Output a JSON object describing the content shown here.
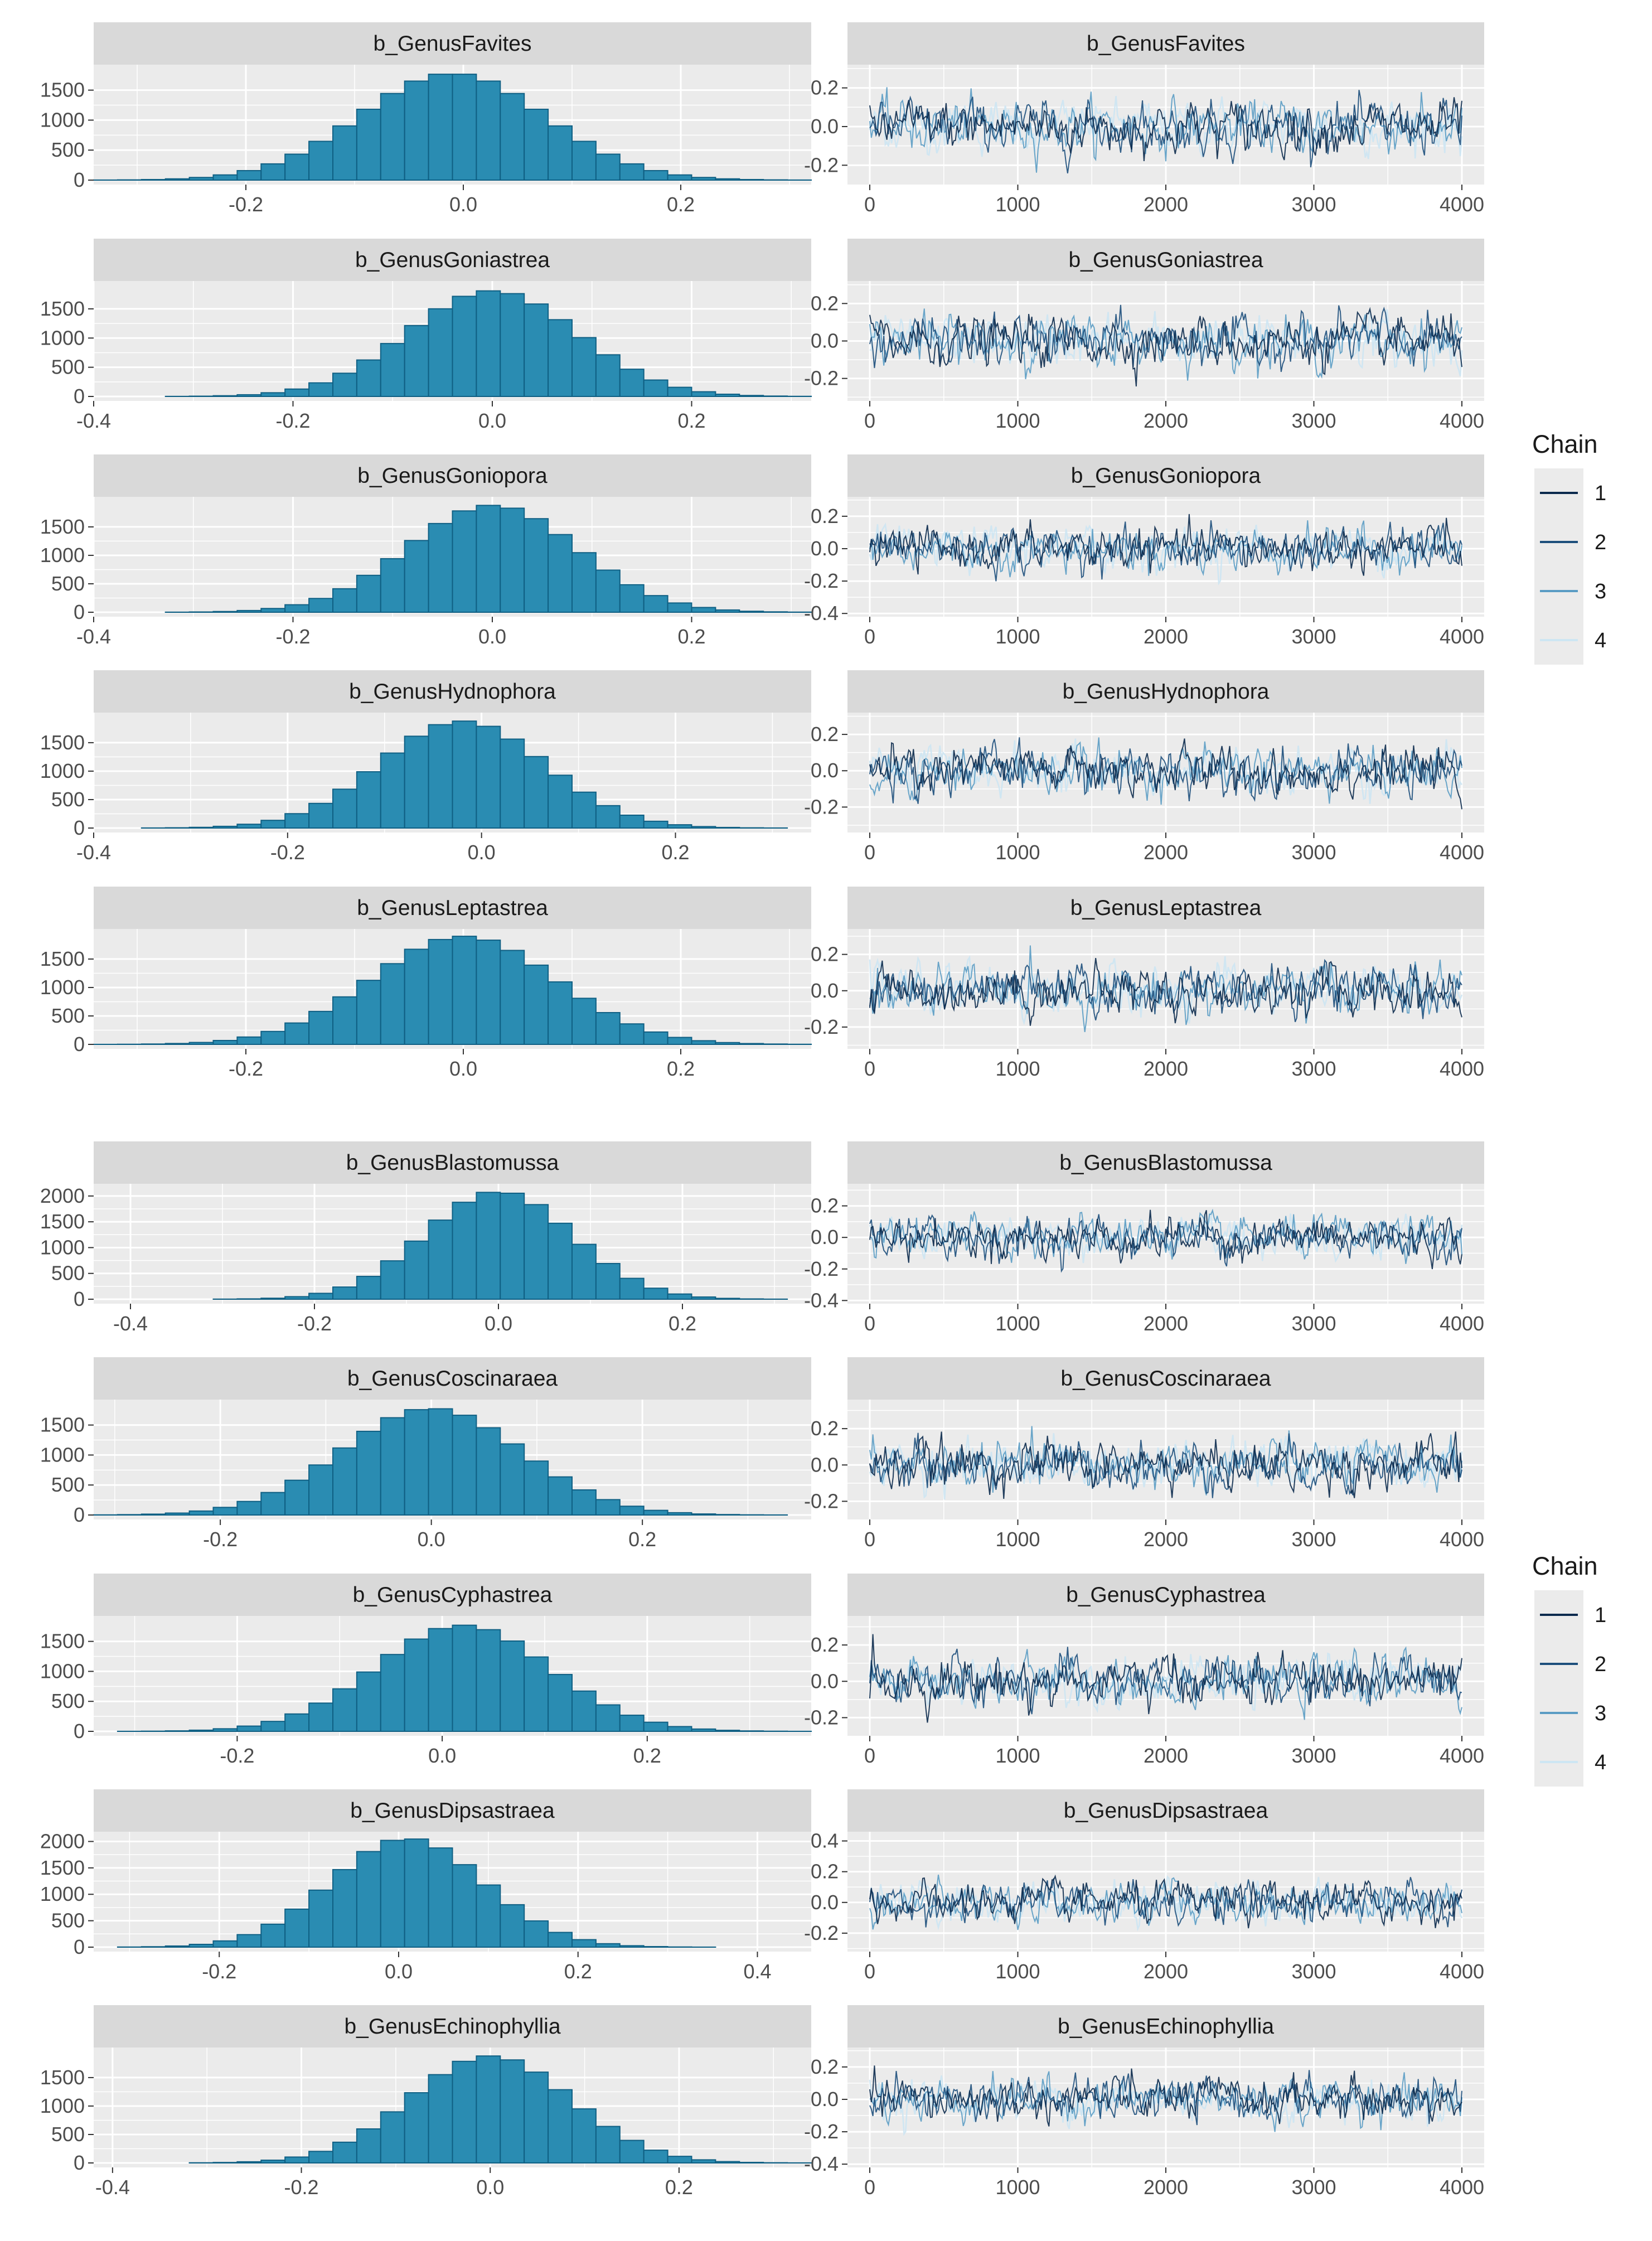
{
  "figure": {
    "legend_title": "Chain",
    "chains": [
      "1",
      "2",
      "3",
      "4"
    ],
    "chain_colors": [
      "#0b2a4d",
      "#1d4f7c",
      "#5a9cc4",
      "#cde6f3"
    ],
    "bar_fill": "#2a8cb2",
    "bar_outline": "#0f5f83",
    "panel_bg": "#ebebeb",
    "strip_bg": "#d9d9d9"
  },
  "chart_data": [
    {
      "type": "bar",
      "title": "b_GenusFavites",
      "center": -0.01,
      "sd": 0.085,
      "peak": 1780,
      "x_range": [
        -0.34,
        0.32
      ],
      "x_ticks": [
        -0.2,
        0.0,
        0.2
      ],
      "x_tick_labels": [
        "-0.2",
        "0.0",
        "0.2"
      ],
      "y_ticks": [
        0,
        500,
        1000,
        1500
      ],
      "y_tick_labels": [
        "0",
        "500",
        "1000",
        "1500"
      ],
      "y_max": 1850
    },
    {
      "type": "bar",
      "title": "b_GenusGoniastrea",
      "center": 0.0,
      "sd": 0.085,
      "peak": 1810,
      "x_range": [
        -0.4,
        0.32
      ],
      "x_ticks": [
        -0.4,
        -0.2,
        0.0,
        0.2
      ],
      "x_tick_labels": [
        "-0.4",
        "-0.2",
        "0.0",
        "0.2"
      ],
      "y_ticks": [
        0,
        500,
        1000,
        1500
      ],
      "y_tick_labels": [
        "0",
        "500",
        "1000",
        "1500"
      ],
      "y_max": 1900
    },
    {
      "type": "bar",
      "title": "b_GenusGoniopora",
      "center": 0.0,
      "sd": 0.085,
      "peak": 1880,
      "x_range": [
        -0.4,
        0.32
      ],
      "x_ticks": [
        -0.4,
        -0.2,
        0.0,
        0.2
      ],
      "x_tick_labels": [
        "-0.4",
        "-0.2",
        "0.0",
        "0.2"
      ],
      "y_ticks": [
        0,
        500,
        1000,
        1500
      ],
      "y_tick_labels": [
        "0",
        "500",
        "1000",
        "1500"
      ],
      "y_max": 1950
    },
    {
      "type": "bar",
      "title": "b_GenusHydnophora",
      "center": -0.02,
      "sd": 0.085,
      "peak": 1880,
      "x_range": [
        -0.4,
        0.34
      ],
      "x_ticks": [
        -0.4,
        -0.2,
        0.0,
        0.2
      ],
      "x_tick_labels": [
        "-0.4",
        "-0.2",
        "0.0",
        "0.2"
      ],
      "y_ticks": [
        0,
        500,
        1000,
        1500
      ],
      "y_tick_labels": [
        "0",
        "500",
        "1000",
        "1500"
      ],
      "y_max": 1950
    },
    {
      "type": "bar",
      "title": "b_GenusLeptastrea",
      "center": 0.0,
      "sd": 0.085,
      "peak": 1900,
      "x_range": [
        -0.34,
        0.32
      ],
      "x_ticks": [
        -0.2,
        0.0,
        0.2
      ],
      "x_tick_labels": [
        "-0.2",
        "0.0",
        "0.2"
      ],
      "y_ticks": [
        0,
        500,
        1000,
        1500
      ],
      "y_tick_labels": [
        "0",
        "500",
        "1000",
        "1500"
      ],
      "y_max": 1950
    },
    {
      "type": "bar",
      "title": "b_GenusBlastomussa",
      "center": 0.0,
      "sd": 0.08,
      "peak": 2090,
      "x_range": [
        -0.44,
        0.34
      ],
      "x_ticks": [
        -0.4,
        -0.2,
        0.0,
        0.2
      ],
      "x_tick_labels": [
        "-0.4",
        "-0.2",
        "0.0",
        "0.2"
      ],
      "y_ticks": [
        0,
        500,
        1000,
        1500,
        2000
      ],
      "y_tick_labels": [
        "0",
        "500",
        "1000",
        "1500",
        "2000"
      ],
      "y_max": 2150
    },
    {
      "type": "bar",
      "title": "b_GenusCoscinaraea",
      "center": 0.0,
      "sd": 0.085,
      "peak": 1780,
      "x_range": [
        -0.32,
        0.36
      ],
      "x_ticks": [
        -0.2,
        0.0,
        0.2
      ],
      "x_tick_labels": [
        "-0.2",
        "0.0",
        "0.2"
      ],
      "y_ticks": [
        0,
        500,
        1000,
        1500
      ],
      "y_tick_labels": [
        "0",
        "500",
        "1000",
        "1500"
      ],
      "y_max": 1850
    },
    {
      "type": "bar",
      "title": "b_GenusCyphastrea",
      "center": 0.02,
      "sd": 0.085,
      "peak": 1770,
      "x_range": [
        -0.34,
        0.36
      ],
      "x_ticks": [
        -0.2,
        0.0,
        0.2
      ],
      "x_tick_labels": [
        "-0.2",
        "0.0",
        "0.2"
      ],
      "y_ticks": [
        0,
        500,
        1000,
        1500
      ],
      "y_tick_labels": [
        "0",
        "500",
        "1000",
        "1500"
      ],
      "y_max": 1850
    },
    {
      "type": "bar",
      "title": "b_GenusDipsastraea",
      "center": 0.01,
      "sd": 0.085,
      "peak": 2060,
      "x_range": [
        -0.34,
        0.46
      ],
      "x_ticks": [
        -0.2,
        0.0,
        0.2,
        0.4
      ],
      "x_tick_labels": [
        "-0.2",
        "0.0",
        "0.2",
        "0.4"
      ],
      "y_ticks": [
        0,
        500,
        1000,
        1500,
        2000
      ],
      "y_tick_labels": [
        "0",
        "500",
        "1000",
        "1500",
        "2000"
      ],
      "y_max": 2100
    },
    {
      "type": "bar",
      "title": "b_GenusEchinophyllia",
      "center": 0.0,
      "sd": 0.085,
      "peak": 1880,
      "x_range": [
        -0.42,
        0.34
      ],
      "x_ticks": [
        -0.4,
        -0.2,
        0.0,
        0.2
      ],
      "x_tick_labels": [
        "-0.4",
        "-0.2",
        "0.0",
        "0.2"
      ],
      "y_ticks": [
        0,
        500,
        1000,
        1500
      ],
      "y_tick_labels": [
        "0",
        "500",
        "1000",
        "1500"
      ],
      "y_max": 1950
    },
    {
      "type": "line",
      "title": "b_GenusFavites",
      "x_range": [
        0,
        4000
      ],
      "x_ticks": [
        0,
        1000,
        2000,
        3000,
        4000
      ],
      "x_tick_labels": [
        "0",
        "1000",
        "2000",
        "3000",
        "4000"
      ],
      "y_range": [
        -0.3,
        0.32
      ],
      "y_ticks": [
        -0.2,
        0.0,
        0.2
      ],
      "y_tick_labels": [
        "-0.2",
        "0.0",
        "0.2"
      ]
    },
    {
      "type": "line",
      "title": "b_GenusGoniastrea",
      "x_range": [
        0,
        4000
      ],
      "x_ticks": [
        0,
        1000,
        2000,
        3000,
        4000
      ],
      "x_tick_labels": [
        "0",
        "1000",
        "2000",
        "3000",
        "4000"
      ],
      "y_range": [
        -0.32,
        0.32
      ],
      "y_ticks": [
        -0.2,
        0.0,
        0.2
      ],
      "y_tick_labels": [
        "-0.2",
        "0.0",
        "0.2"
      ]
    },
    {
      "type": "line",
      "title": "b_GenusGoniopora",
      "x_range": [
        0,
        4000
      ],
      "x_ticks": [
        0,
        1000,
        2000,
        3000,
        4000
      ],
      "x_tick_labels": [
        "0",
        "1000",
        "2000",
        "3000",
        "4000"
      ],
      "y_range": [
        -0.42,
        0.32
      ],
      "y_ticks": [
        -0.4,
        -0.2,
        0.0,
        0.2
      ],
      "y_tick_labels": [
        "-0.4",
        "-0.2",
        "0.0",
        "0.2"
      ]
    },
    {
      "type": "line",
      "title": "b_GenusHydnophora",
      "x_range": [
        0,
        4000
      ],
      "x_ticks": [
        0,
        1000,
        2000,
        3000,
        4000
      ],
      "x_tick_labels": [
        "0",
        "1000",
        "2000",
        "3000",
        "4000"
      ],
      "y_range": [
        -0.34,
        0.32
      ],
      "y_ticks": [
        -0.2,
        0.0,
        0.2
      ],
      "y_tick_labels": [
        "-0.2",
        "0.0",
        "0.2"
      ]
    },
    {
      "type": "line",
      "title": "b_GenusLeptastrea",
      "x_range": [
        0,
        4000
      ],
      "x_ticks": [
        0,
        1000,
        2000,
        3000,
        4000
      ],
      "x_tick_labels": [
        "0",
        "1000",
        "2000",
        "3000",
        "4000"
      ],
      "y_range": [
        -0.32,
        0.34
      ],
      "y_ticks": [
        -0.2,
        0.0,
        0.2
      ],
      "y_tick_labels": [
        "-0.2",
        "0.0",
        "0.2"
      ]
    },
    {
      "type": "line",
      "title": "b_GenusBlastomussa",
      "x_range": [
        0,
        4000
      ],
      "x_ticks": [
        0,
        1000,
        2000,
        3000,
        4000
      ],
      "x_tick_labels": [
        "0",
        "1000",
        "2000",
        "3000",
        "4000"
      ],
      "y_range": [
        -0.42,
        0.34
      ],
      "y_ticks": [
        -0.4,
        -0.2,
        0.0,
        0.2
      ],
      "y_tick_labels": [
        "-0.4",
        "-0.2",
        "0.0",
        "0.2"
      ]
    },
    {
      "type": "line",
      "title": "b_GenusCoscinaraea",
      "x_range": [
        0,
        4000
      ],
      "x_ticks": [
        0,
        1000,
        2000,
        3000,
        4000
      ],
      "x_tick_labels": [
        "0",
        "1000",
        "2000",
        "3000",
        "4000"
      ],
      "y_range": [
        -0.3,
        0.36
      ],
      "y_ticks": [
        -0.2,
        0.0,
        0.2
      ],
      "y_tick_labels": [
        "-0.2",
        "0.0",
        "0.2"
      ]
    },
    {
      "type": "line",
      "title": "b_GenusCyphastrea",
      "x_range": [
        0,
        4000
      ],
      "x_ticks": [
        0,
        1000,
        2000,
        3000,
        4000
      ],
      "x_tick_labels": [
        "0",
        "1000",
        "2000",
        "3000",
        "4000"
      ],
      "y_range": [
        -0.3,
        0.36
      ],
      "y_ticks": [
        -0.2,
        0.0,
        0.2
      ],
      "y_tick_labels": [
        "-0.2",
        "0.0",
        "0.2"
      ]
    },
    {
      "type": "line",
      "title": "b_GenusDipsastraea",
      "x_range": [
        0,
        4000
      ],
      "x_ticks": [
        0,
        1000,
        2000,
        3000,
        4000
      ],
      "x_tick_labels": [
        "0",
        "1000",
        "2000",
        "3000",
        "4000"
      ],
      "y_range": [
        -0.32,
        0.46
      ],
      "y_ticks": [
        -0.2,
        0.0,
        0.2,
        0.4
      ],
      "y_tick_labels": [
        "-0.2",
        "0.0",
        "0.2",
        "0.4"
      ]
    },
    {
      "type": "line",
      "title": "b_GenusEchinophyllia",
      "x_range": [
        0,
        4000
      ],
      "x_ticks": [
        0,
        1000,
        2000,
        3000,
        4000
      ],
      "x_tick_labels": [
        "0",
        "1000",
        "2000",
        "3000",
        "4000"
      ],
      "y_range": [
        -0.42,
        0.32
      ],
      "y_ticks": [
        -0.4,
        -0.2,
        0.0,
        0.2
      ],
      "y_tick_labels": [
        "-0.4",
        "-0.2",
        "0.0",
        "0.2"
      ]
    }
  ]
}
